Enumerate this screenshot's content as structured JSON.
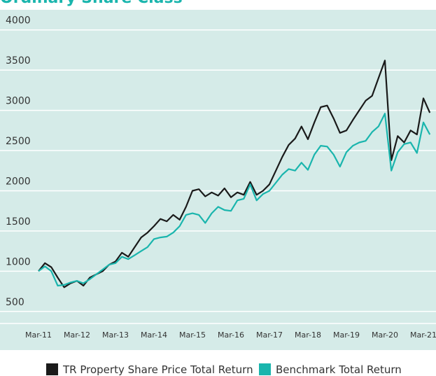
{
  "chart_data": {
    "type": "line",
    "title": "Ordinary Share Class",
    "categories": [
      "Mar-11",
      null,
      null,
      null,
      null,
      null,
      "Mar-12",
      null,
      null,
      null,
      null,
      null,
      "Mar-13",
      null,
      null,
      null,
      null,
      null,
      "Mar-14",
      null,
      null,
      null,
      null,
      null,
      "Mar-15",
      null,
      null,
      null,
      null,
      null,
      "Mar-16",
      null,
      null,
      null,
      null,
      null,
      "Mar-17",
      null,
      null,
      null,
      null,
      null,
      "Mar-18",
      null,
      null,
      null,
      null,
      null,
      "Mar-19",
      null,
      null,
      null,
      null,
      null,
      "Mar-20",
      null,
      null,
      null,
      null,
      null,
      "Mar-21",
      null
    ],
    "series": [
      {
        "name": "TR Property Share Price Total Return",
        "color": "#1a1a1a",
        "values": [
          1000,
          1100,
          1050,
          920,
          800,
          850,
          880,
          820,
          920,
          960,
          1000,
          1080,
          1120,
          1230,
          1180,
          1300,
          1420,
          1480,
          1560,
          1650,
          1620,
          1700,
          1640,
          1800,
          2000,
          2020,
          1930,
          1980,
          1940,
          2030,
          1920,
          1980,
          1950,
          2110,
          1950,
          2000,
          2080,
          2250,
          2420,
          2570,
          2650,
          2800,
          2640,
          2850,
          3040,
          3060,
          2900,
          2720,
          2750,
          2880,
          3000,
          3120,
          3180,
          3400,
          3620,
          2380,
          2680,
          2600,
          2750,
          2700,
          3150,
          2970
        ]
      },
      {
        "name": "Benchmark Total Return",
        "color": "#1ab5ad",
        "values": [
          1000,
          1060,
          1000,
          820,
          830,
          860,
          880,
          850,
          900,
          960,
          1020,
          1080,
          1100,
          1180,
          1150,
          1200,
          1250,
          1300,
          1400,
          1420,
          1430,
          1480,
          1560,
          1700,
          1720,
          1700,
          1600,
          1720,
          1800,
          1760,
          1750,
          1880,
          1900,
          2080,
          1880,
          1960,
          2000,
          2100,
          2200,
          2270,
          2250,
          2350,
          2260,
          2450,
          2560,
          2550,
          2450,
          2300,
          2480,
          2560,
          2600,
          2620,
          2730,
          2800,
          2960,
          2250,
          2480,
          2580,
          2600,
          2470,
          2850,
          2700
        ]
      }
    ],
    "ylim": [
      350,
      4250
    ],
    "yticks": [
      500,
      1000,
      1500,
      2000,
      2500,
      3000,
      3500,
      4000
    ],
    "grid": true,
    "legend": "bottom"
  }
}
